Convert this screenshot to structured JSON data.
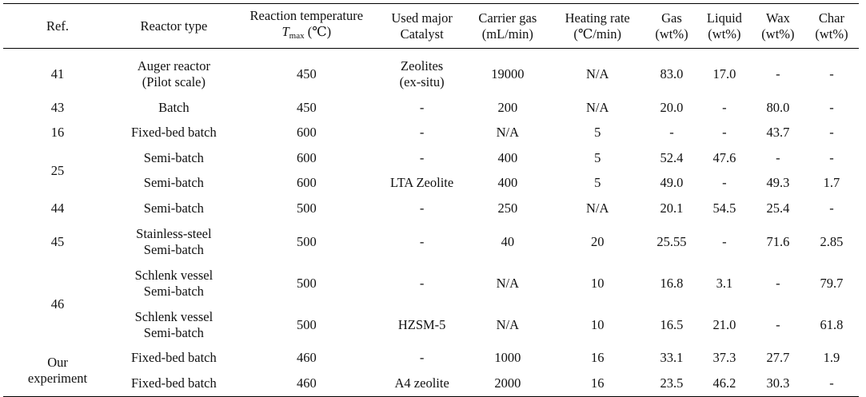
{
  "headers": {
    "ref": "Ref.",
    "reactor_type": "Reactor type",
    "temp_line1": "Reaction temperature",
    "temp_symbol": "T",
    "temp_subscript": "max",
    "temp_unit": "(℃)",
    "catalyst_line1": "Used major",
    "catalyst_line2": "Catalyst",
    "carrier_line1": "Carrier gas",
    "carrier_line2": "(mL/min)",
    "heating_line1": "Heating rate",
    "heating_line2": "(℃/min)",
    "gas_line1": "Gas",
    "gas_line2": "(wt%)",
    "liquid_line1": "Liquid",
    "liquid_line2": "(wt%)",
    "wax_line1": "Wax",
    "wax_line2": "(wt%)",
    "char_line1": "Char",
    "char_line2": "(wt%)"
  },
  "refs": {
    "r41": "41",
    "r43": "43",
    "r16": "16",
    "r25": "25",
    "r44": "44",
    "r45": "45",
    "r46": "46",
    "ours_line1": "Our",
    "ours_line2": "experiment"
  },
  "rows": [
    {
      "reactor_line1": "Auger reactor",
      "reactor_line2": "(Pilot scale)",
      "temp": "450",
      "catalyst_line1": "Zeolites",
      "catalyst_line2": "(ex-situ)",
      "carrier": "19000",
      "heating": "N/A",
      "gas": "83.0",
      "liquid": "17.0",
      "wax": "-",
      "char": "-"
    },
    {
      "reactor_line1": "Batch",
      "reactor_line2": "",
      "temp": "450",
      "catalyst_line1": "-",
      "catalyst_line2": "",
      "carrier": "200",
      "heating": "N/A",
      "gas": "20.0",
      "liquid": "-",
      "wax": "80.0",
      "char": "-"
    },
    {
      "reactor_line1": "Fixed-bed batch",
      "reactor_line2": "",
      "temp": "600",
      "catalyst_line1": "-",
      "catalyst_line2": "",
      "carrier": "N/A",
      "heating": "5",
      "gas": "-",
      "liquid": "-",
      "wax": "43.7",
      "char": "-"
    },
    {
      "reactor_line1": "Semi-batch",
      "reactor_line2": "",
      "temp": "600",
      "catalyst_line1": "-",
      "catalyst_line2": "",
      "carrier": "400",
      "heating": "5",
      "gas": "52.4",
      "liquid": "47.6",
      "wax": "-",
      "char": "-"
    },
    {
      "reactor_line1": "Semi-batch",
      "reactor_line2": "",
      "temp": "600",
      "catalyst_line1": "LTA Zeolite",
      "catalyst_line2": "",
      "carrier": "400",
      "heating": "5",
      "gas": "49.0",
      "liquid": "-",
      "wax": "49.3",
      "char": "1.7"
    },
    {
      "reactor_line1": "Semi-batch",
      "reactor_line2": "",
      "temp": "500",
      "catalyst_line1": "-",
      "catalyst_line2": "",
      "carrier": "250",
      "heating": "N/A",
      "gas": "20.1",
      "liquid": "54.5",
      "wax": "25.4",
      "char": "-"
    },
    {
      "reactor_line1": "Stainless-steel",
      "reactor_line2": "Semi-batch",
      "temp": "500",
      "catalyst_line1": "-",
      "catalyst_line2": "",
      "carrier": "40",
      "heating": "20",
      "gas": "25.55",
      "liquid": "-",
      "wax": "71.6",
      "char": "2.85"
    },
    {
      "reactor_line1": "Schlenk vessel",
      "reactor_line2": "Semi-batch",
      "temp": "500",
      "catalyst_line1": "-",
      "catalyst_line2": "",
      "carrier": "N/A",
      "heating": "10",
      "gas": "16.8",
      "liquid": "3.1",
      "wax": "-",
      "char": "79.7"
    },
    {
      "reactor_line1": "Schlenk vessel",
      "reactor_line2": "Semi-batch",
      "temp": "500",
      "catalyst_line1": "HZSM-5",
      "catalyst_line2": "",
      "carrier": "N/A",
      "heating": "10",
      "gas": "16.5",
      "liquid": "21.0",
      "wax": "-",
      "char": "61.8"
    },
    {
      "reactor_line1": "Fixed-bed batch",
      "reactor_line2": "",
      "temp": "460",
      "catalyst_line1": "-",
      "catalyst_line2": "",
      "carrier": "1000",
      "heating": "16",
      "gas": "33.1",
      "liquid": "37.3",
      "wax": "27.7",
      "char": "1.9"
    },
    {
      "reactor_line1": "Fixed-bed batch",
      "reactor_line2": "",
      "temp": "460",
      "catalyst_line1": "A4 zeolite",
      "catalyst_line2": "",
      "carrier": "2000",
      "heating": "16",
      "gas": "23.5",
      "liquid": "46.2",
      "wax": "30.3",
      "char": "-"
    }
  ]
}
